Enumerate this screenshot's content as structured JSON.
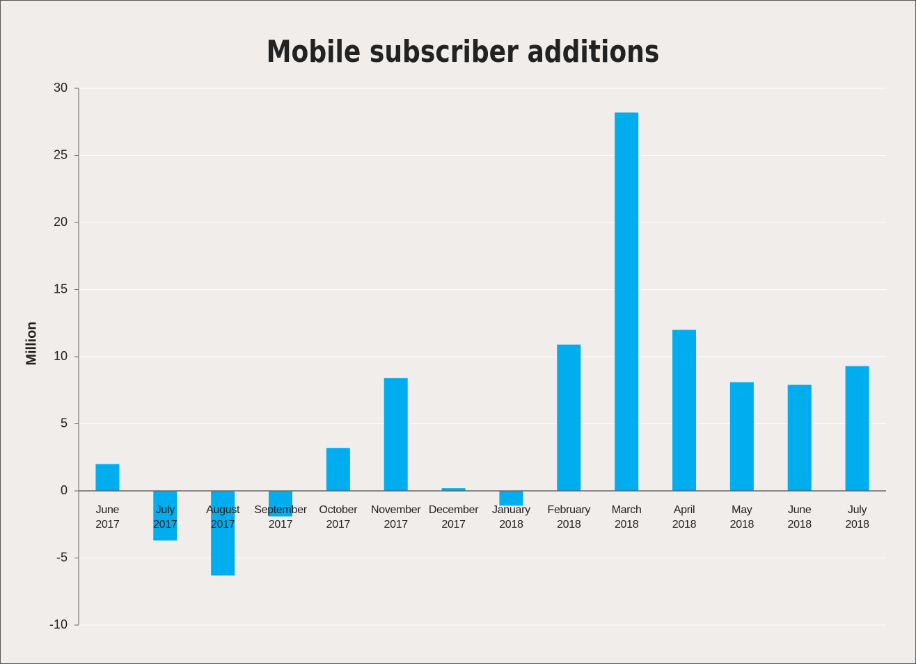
{
  "chart_data": {
    "type": "bar",
    "title": "Mobile subscriber additions",
    "y_label": "Million",
    "categories": [
      "June 2017",
      "July 2017",
      "August 2017",
      "September 2017",
      "October 2017",
      "November 2017",
      "December 2017",
      "January 2018",
      "February 2018",
      "March 2018",
      "April 2018",
      "May 2018",
      "June 2018",
      "July 2018"
    ],
    "values": [
      2.0,
      -3.7,
      -6.3,
      -1.9,
      3.2,
      8.4,
      0.2,
      -1.1,
      10.9,
      28.2,
      12.0,
      8.1,
      7.9,
      9.3
    ],
    "color": "#00aeef",
    "ylim": [
      -10,
      30
    ],
    "yticks": [
      -10,
      -5,
      0,
      5,
      10,
      15,
      20,
      25,
      30
    ],
    "grid": true
  }
}
